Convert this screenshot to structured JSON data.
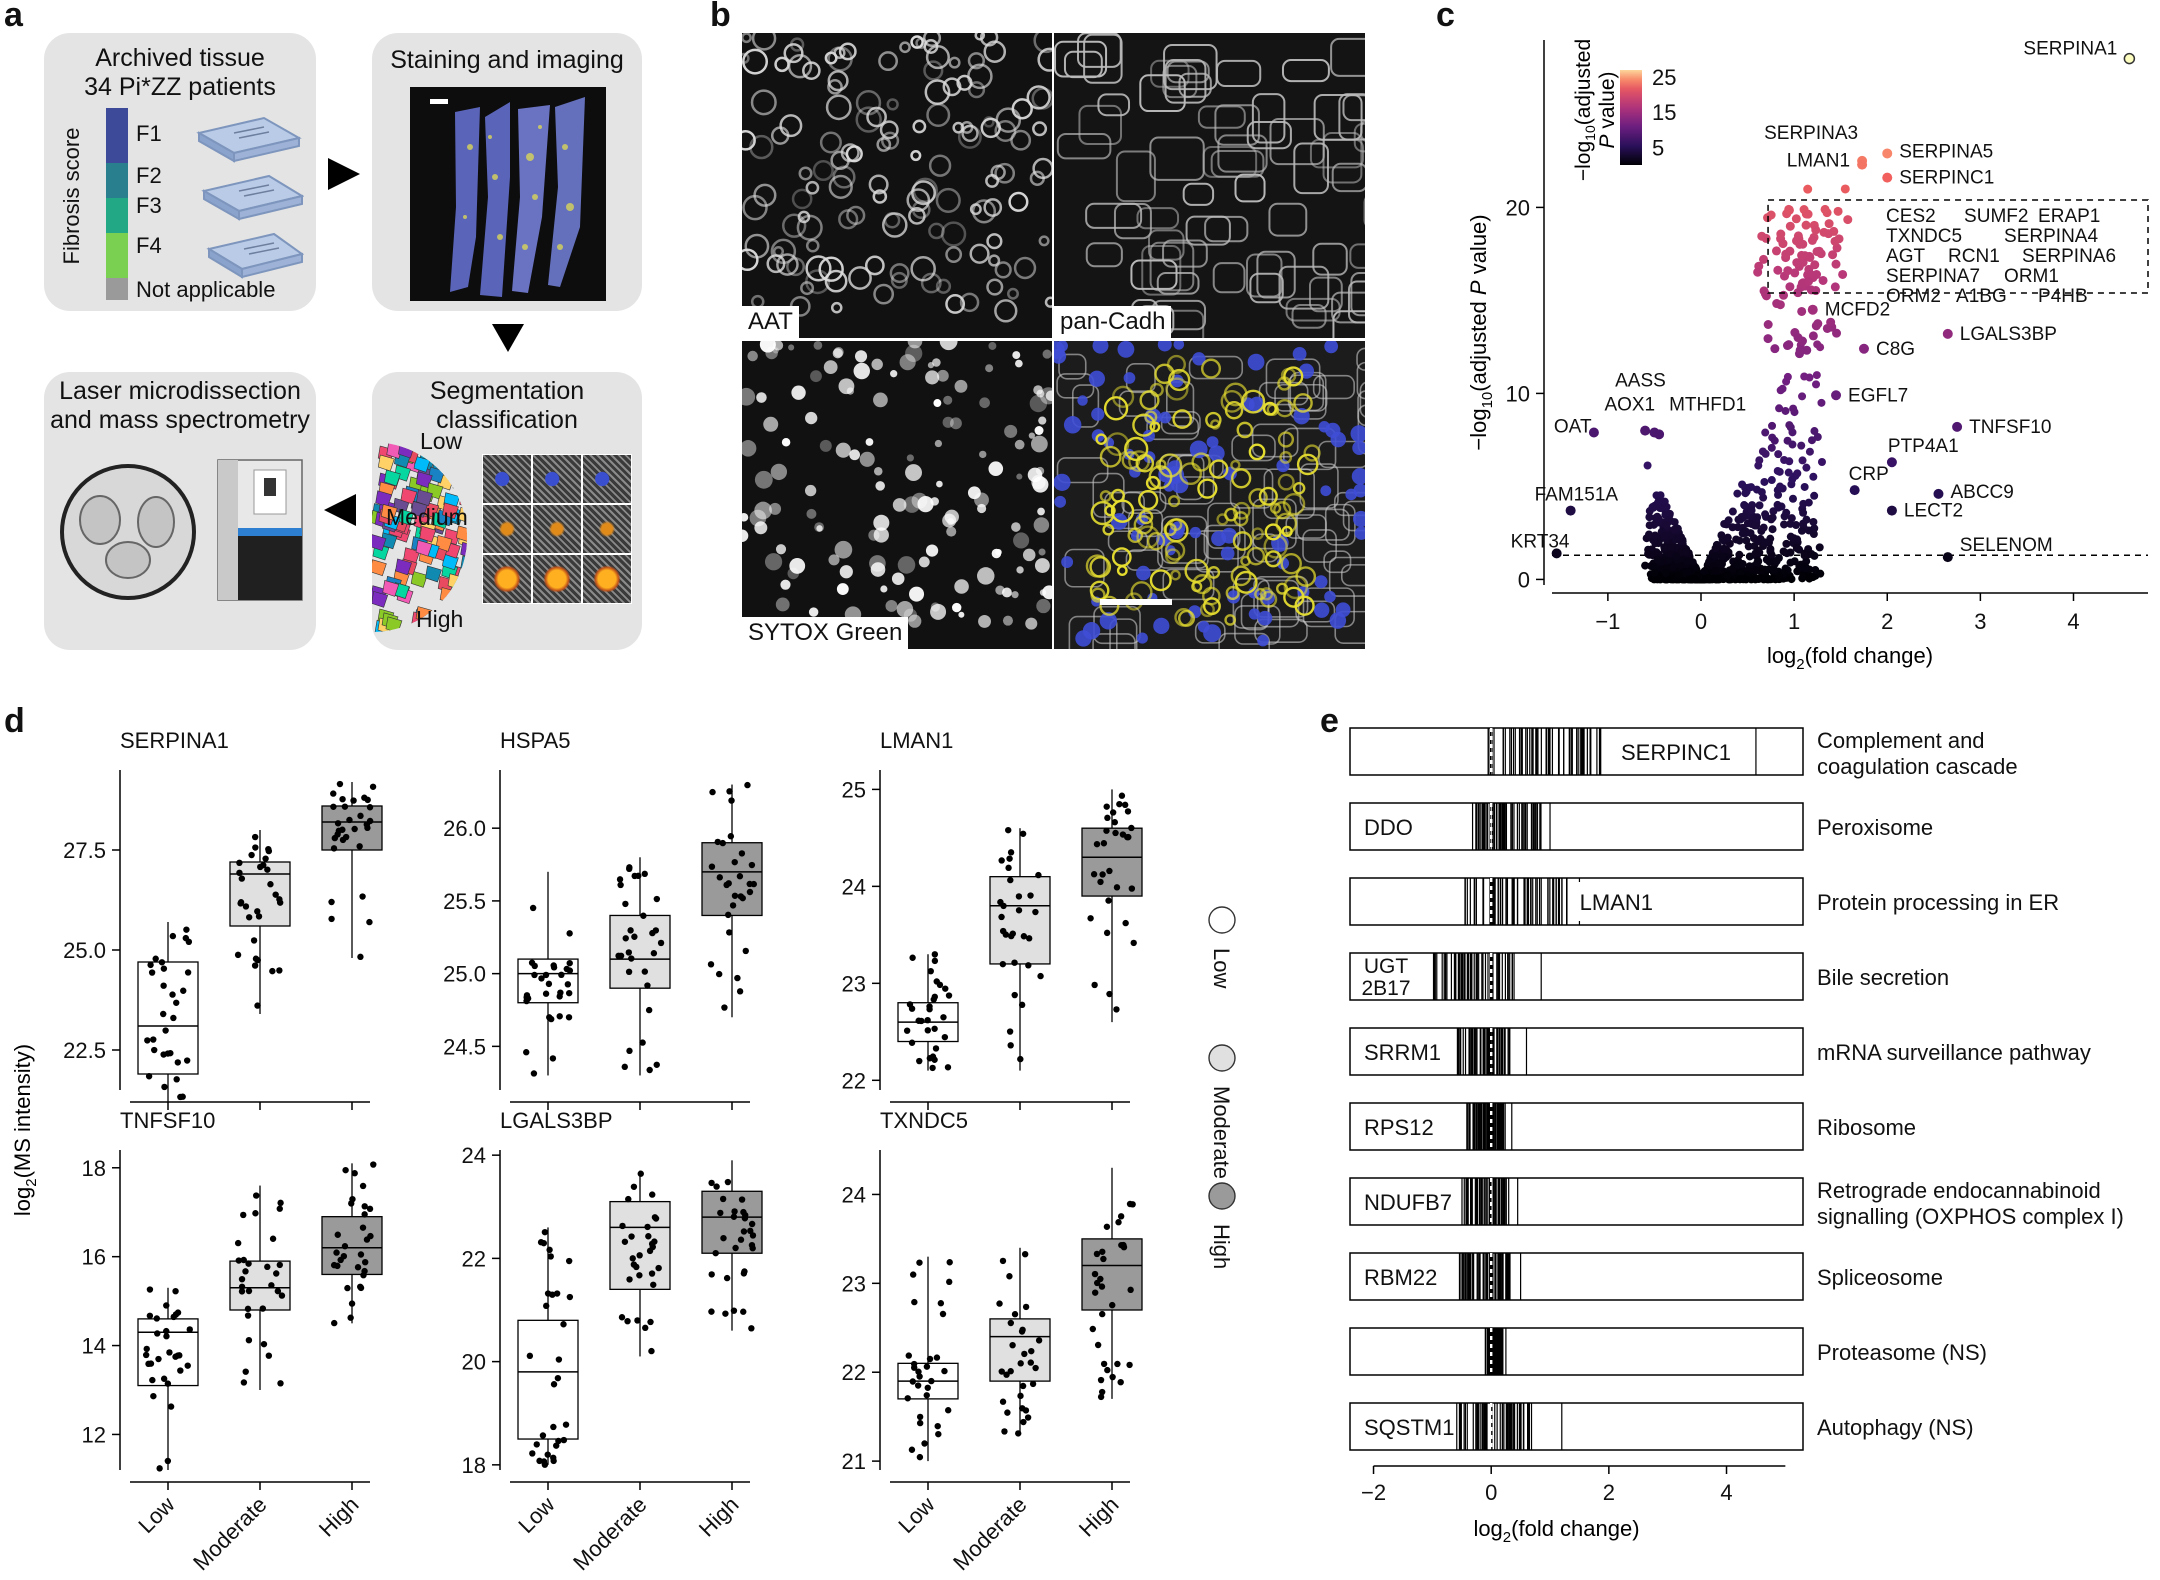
{
  "panels": {
    "a": "a",
    "b": "b",
    "c": "c",
    "d": "d",
    "e": "e"
  },
  "panel_a": {
    "archived_title_line1": "Archived tissue",
    "archived_title_line2": "34 Pi*ZZ patients",
    "fibrosis_axis": "Fibrosis score",
    "fibrosis_levels": [
      "F1",
      "F2",
      "F3",
      "F4"
    ],
    "fibrosis_colors": [
      "#3d4a9a",
      "#2a7f8f",
      "#22a884",
      "#7ad151"
    ],
    "na_label": "Not applicable",
    "na_color": "#9a9a9a",
    "staining_title": "Staining and imaging",
    "segmentation_title_line1": "Segmentation",
    "segmentation_title_line2": "classification",
    "classes": [
      "Low",
      "Medium",
      "High"
    ],
    "laser_title_line1": "Laser microdissection",
    "laser_title_line2": "and mass spectrometry"
  },
  "panel_b": {
    "labels": [
      "AAT",
      "pan-Cadh",
      "SYTOX Green"
    ]
  },
  "chart_data": [
    {
      "type": "scatter",
      "panel": "c",
      "xlabel_main": "log",
      "xlabel_sub": "2",
      "xlabel_rest": "(fold change)",
      "ylabel_main": "−log",
      "ylabel_sub": "10",
      "ylabel_rest": "(adjusted ",
      "ylabel_italic": "P",
      "ylabel_end": " value)",
      "xticks": [
        -1,
        0,
        1,
        2,
        3,
        4
      ],
      "yticks": [
        0,
        10,
        20
      ],
      "xlim": [
        -1.6,
        4.8
      ],
      "ylim": [
        -0.3,
        29
      ],
      "threshold_y": 1.3,
      "colorbar_title_line1": "−log",
      "colorbar_title_sub": "10",
      "colorbar_title_rest": "(adjusted",
      "colorbar_title_line2_italic": "P",
      "colorbar_title_line2_rest": " value)",
      "colorbar_ticks": [
        25,
        15,
        5
      ],
      "colorbar_range": [
        0,
        27
      ],
      "highlight_box_labels": [
        "CES2",
        "SUMF2",
        "ERAP1",
        "TXNDC5",
        "SERPINA4",
        "AGT",
        "RCN1",
        "SERPINA6",
        "SERPINA7",
        "ORM1",
        "ORM2",
        "A1BG",
        "P4HB"
      ],
      "labeled_points": [
        {
          "label": "SERPINA1",
          "x": 4.6,
          "y": 28.0
        },
        {
          "label": "SERPINA3",
          "x": 1.73,
          "y": 22.5
        },
        {
          "label": "LMAN1",
          "x": 1.73,
          "y": 22.3
        },
        {
          "label": "SERPINA5",
          "x": 2.0,
          "y": 22.9
        },
        {
          "label": "SERPINC1",
          "x": 2.0,
          "y": 21.6
        },
        {
          "label": "MCFD2",
          "x": 1.2,
          "y": 14.5
        },
        {
          "label": "C8G",
          "x": 1.75,
          "y": 12.4
        },
        {
          "label": "LGALS3BP",
          "x": 2.65,
          "y": 13.2
        },
        {
          "label": "EGFL7",
          "x": 1.45,
          "y": 9.9
        },
        {
          "label": "TNFSF10",
          "x": 2.75,
          "y": 8.2
        },
        {
          "label": "PTP4A1",
          "x": 2.05,
          "y": 6.3
        },
        {
          "label": "CRP",
          "x": 1.65,
          "y": 4.8
        },
        {
          "label": "ABCC9",
          "x": 2.55,
          "y": 4.6
        },
        {
          "label": "LECT2",
          "x": 2.05,
          "y": 3.7
        },
        {
          "label": "SELENOM",
          "x": 2.65,
          "y": 1.2
        },
        {
          "label": "AASS",
          "x": -0.6,
          "y": 8.0
        },
        {
          "label": "AOX1",
          "x": -0.5,
          "y": 7.9
        },
        {
          "label": "MTHFD1",
          "x": -0.45,
          "y": 7.8
        },
        {
          "label": "OAT",
          "x": -1.15,
          "y": 7.9
        },
        {
          "label": "FAM151A",
          "x": -1.4,
          "y": 3.7
        },
        {
          "label": "KRT34",
          "x": -1.55,
          "y": 1.4
        }
      ]
    },
    {
      "type": "boxplot",
      "panel": "d",
      "ylabel_main": "log",
      "ylabel_sub": "2",
      "ylabel_rest": "(MS intensity)",
      "categories": [
        "Low",
        "Moderate",
        "High"
      ],
      "category_colors": [
        "#ffffff",
        "#e0e0e0",
        "#9a9a9a"
      ],
      "legend": [
        "Low",
        "Moderate",
        "High"
      ],
      "panels": [
        {
          "title": "SERPINA1",
          "ylim": [
            21.5,
            29.5
          ],
          "yticks": [
            22.5,
            25.0,
            27.5
          ],
          "ytick_labels": [
            "22.5",
            "25.0",
            "27.5"
          ],
          "stats": [
            {
              "min": 21.2,
              "q1": 21.9,
              "med": 23.1,
              "q3": 24.7,
              "max": 25.7
            },
            {
              "min": 23.4,
              "q1": 25.6,
              "med": 26.9,
              "q3": 27.2,
              "max": 28.0
            },
            {
              "min": 24.8,
              "q1": 27.5,
              "med": 28.2,
              "q3": 28.6,
              "max": 29.2
            }
          ]
        },
        {
          "title": "HSPA5",
          "ylim": [
            24.2,
            26.4
          ],
          "yticks": [
            24.5,
            25.0,
            25.5,
            26.0
          ],
          "ytick_labels": [
            "24.5",
            "25.0",
            "25.5",
            "26.0"
          ],
          "stats": [
            {
              "min": 24.3,
              "q1": 24.8,
              "med": 25.0,
              "q3": 25.1,
              "max": 25.7
            },
            {
              "min": 24.3,
              "q1": 24.9,
              "med": 25.1,
              "q3": 25.4,
              "max": 25.8
            },
            {
              "min": 24.7,
              "q1": 25.4,
              "med": 25.7,
              "q3": 25.9,
              "max": 26.3
            }
          ]
        },
        {
          "title": "LMAN1",
          "ylim": [
            21.9,
            25.2
          ],
          "yticks": [
            22,
            23,
            24,
            25
          ],
          "ytick_labels": [
            "22",
            "23",
            "24",
            "25"
          ],
          "stats": [
            {
              "min": 22.1,
              "q1": 22.4,
              "med": 22.6,
              "q3": 22.8,
              "max": 23.3
            },
            {
              "min": 22.1,
              "q1": 23.2,
              "med": 23.8,
              "q3": 24.1,
              "max": 24.6
            },
            {
              "min": 22.6,
              "q1": 23.9,
              "med": 24.3,
              "q3": 24.6,
              "max": 25.0
            }
          ]
        },
        {
          "title": "TNFSF10",
          "ylim": [
            11.2,
            18.4
          ],
          "yticks": [
            12,
            14,
            16,
            18
          ],
          "ytick_labels": [
            "12",
            "14",
            "16",
            "18"
          ],
          "stats": [
            {
              "min": 11.2,
              "q1": 13.1,
              "med": 14.3,
              "q3": 14.6,
              "max": 15.3
            },
            {
              "min": 13.0,
              "q1": 14.8,
              "med": 15.3,
              "q3": 15.9,
              "max": 17.6
            },
            {
              "min": 14.5,
              "q1": 15.6,
              "med": 16.2,
              "q3": 16.9,
              "max": 18.1
            }
          ]
        },
        {
          "title": "LGALS3BP",
          "ylim": [
            17.9,
            24.1
          ],
          "yticks": [
            18,
            20,
            22,
            24
          ],
          "ytick_labels": [
            "18",
            "20",
            "22",
            "24"
          ],
          "stats": [
            {
              "min": 18.0,
              "q1": 18.5,
              "med": 19.8,
              "q3": 20.8,
              "max": 22.6
            },
            {
              "min": 20.1,
              "q1": 21.4,
              "med": 22.6,
              "q3": 23.1,
              "max": 23.7
            },
            {
              "min": 20.6,
              "q1": 22.1,
              "med": 22.8,
              "q3": 23.3,
              "max": 23.9
            }
          ]
        },
        {
          "title": "TXNDC5",
          "ylim": [
            20.9,
            24.5
          ],
          "yticks": [
            21,
            22,
            23,
            24
          ],
          "ytick_labels": [
            "21",
            "22",
            "23",
            "24"
          ],
          "stats": [
            {
              "min": 21.0,
              "q1": 21.7,
              "med": 21.9,
              "q3": 22.1,
              "max": 23.3
            },
            {
              "min": 21.3,
              "q1": 21.9,
              "med": 22.4,
              "q3": 22.6,
              "max": 23.4
            },
            {
              "min": 21.7,
              "q1": 22.7,
              "med": 23.2,
              "q3": 23.5,
              "max": 24.3
            }
          ]
        }
      ]
    },
    {
      "type": "barcode",
      "panel": "e",
      "xlabel_main": "log",
      "xlabel_sub": "2",
      "xlabel_rest": "(fold change)",
      "xticks": [
        -2,
        0,
        2,
        4
      ],
      "xlim": [
        -2.4,
        5.3
      ],
      "rows": [
        {
          "pathway_line1": "Complement and",
          "pathway_line2": "coagulation cascade",
          "gene": "SERPINC1",
          "gene_line2": "",
          "lo": -0.1,
          "hi": 1.9,
          "tail": 4.5
        },
        {
          "pathway_line1": "Peroxisome",
          "pathway_line2": "",
          "gene": "DDO",
          "gene_line2": "",
          "lo": -0.4,
          "hi": 0.9,
          "tail": 1.0
        },
        {
          "pathway_line1": "Protein processing in ER",
          "pathway_line2": "",
          "gene": "LMAN1",
          "gene_line2": "",
          "lo": -0.45,
          "hi": 1.3,
          "tail": 1.5
        },
        {
          "pathway_line1": "Bile secretion",
          "pathway_line2": "",
          "gene": "UGT",
          "gene_line2": "2B17",
          "lo": -1.0,
          "hi": 0.4,
          "tail": 0.85
        },
        {
          "pathway_line1": "mRNA surveillance pathway",
          "pathway_line2": "",
          "gene": "SRRM1",
          "gene_line2": "",
          "lo": -0.6,
          "hi": 0.4,
          "tail": 0.6
        },
        {
          "pathway_line1": "Ribosome",
          "pathway_line2": "",
          "gene": "RPS12",
          "gene_line2": "",
          "lo": -0.45,
          "hi": 0.25,
          "tail": 0.35
        },
        {
          "pathway_line1": "Retrograde endocannabinoid",
          "pathway_line2": "signalling (OXPHOS complex I)",
          "gene": "NDUFB7",
          "gene_line2": "",
          "lo": -0.5,
          "hi": 0.3,
          "tail": 0.45
        },
        {
          "pathway_line1": "Spliceosome",
          "pathway_line2": "",
          "gene": "RBM22",
          "gene_line2": "",
          "lo": -0.55,
          "hi": 0.35,
          "tail": 0.5
        },
        {
          "pathway_line1": "Proteasome (NS)",
          "pathway_line2": "",
          "gene": "",
          "gene_line2": "",
          "lo": -0.1,
          "hi": 0.2,
          "tail": 0.25
        },
        {
          "pathway_line1": "Autophagy (NS)",
          "pathway_line2": "",
          "gene": "SQSTM1",
          "gene_line2": "",
          "lo": -0.6,
          "hi": 0.7,
          "tail": 1.2
        }
      ]
    }
  ]
}
